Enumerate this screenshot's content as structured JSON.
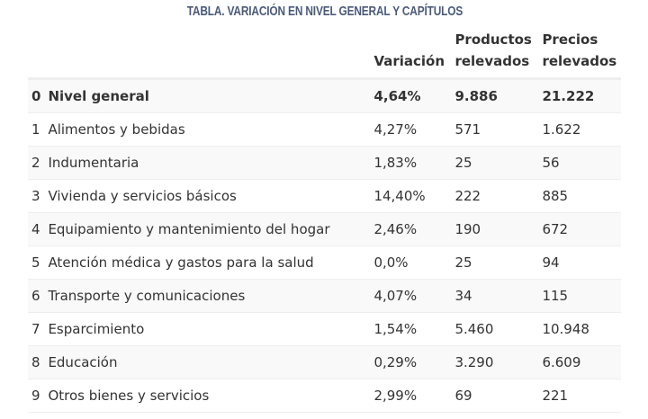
{
  "caption": "TABLA. VARIACIÓN EN NIVEL GENERAL Y CAPÍTULOS",
  "colors": {
    "caption": "#4a5a78",
    "stripe": "#f9f9f9",
    "border": "#eeeeee",
    "text": "#333333"
  },
  "headers": {
    "index": "",
    "label": "",
    "variacion": "Variación",
    "productos_line1": "Productos",
    "productos_line2": "relevados",
    "precios_line1": "Precios",
    "precios_line2": "relevados"
  },
  "rows": [
    {
      "index": "0",
      "label": "Nivel general",
      "variacion": "4,64%",
      "productos": "9.886",
      "precios": "21.222",
      "bold": true
    },
    {
      "index": "1",
      "label": "Alimentos y bebidas",
      "variacion": "4,27%",
      "productos": "571",
      "precios": "1.622"
    },
    {
      "index": "2",
      "label": "Indumentaria",
      "variacion": "1,83%",
      "productos": "25",
      "precios": "56"
    },
    {
      "index": "3",
      "label": "Vivienda y servicios básicos",
      "variacion": "14,40%",
      "productos": "222",
      "precios": "885"
    },
    {
      "index": "4",
      "label": "Equipamiento y mantenimiento del hogar",
      "variacion": "2,46%",
      "productos": "190",
      "precios": "672"
    },
    {
      "index": "5",
      "label": "Atención médica y gastos para la salud",
      "variacion": "0,0%",
      "productos": "25",
      "precios": "94"
    },
    {
      "index": "6",
      "label": "Transporte y comunicaciones",
      "variacion": "4,07%",
      "productos": "34",
      "precios": "115"
    },
    {
      "index": "7",
      "label": "Esparcimiento",
      "variacion": "1,54%",
      "productos": "5.460",
      "precios": "10.948"
    },
    {
      "index": "8",
      "label": "Educación",
      "variacion": "0,29%",
      "productos": "3.290",
      "precios": "6.609"
    },
    {
      "index": "9",
      "label": "Otros bienes y servicios",
      "variacion": "2,99%",
      "productos": "69",
      "precios": "221"
    }
  ]
}
